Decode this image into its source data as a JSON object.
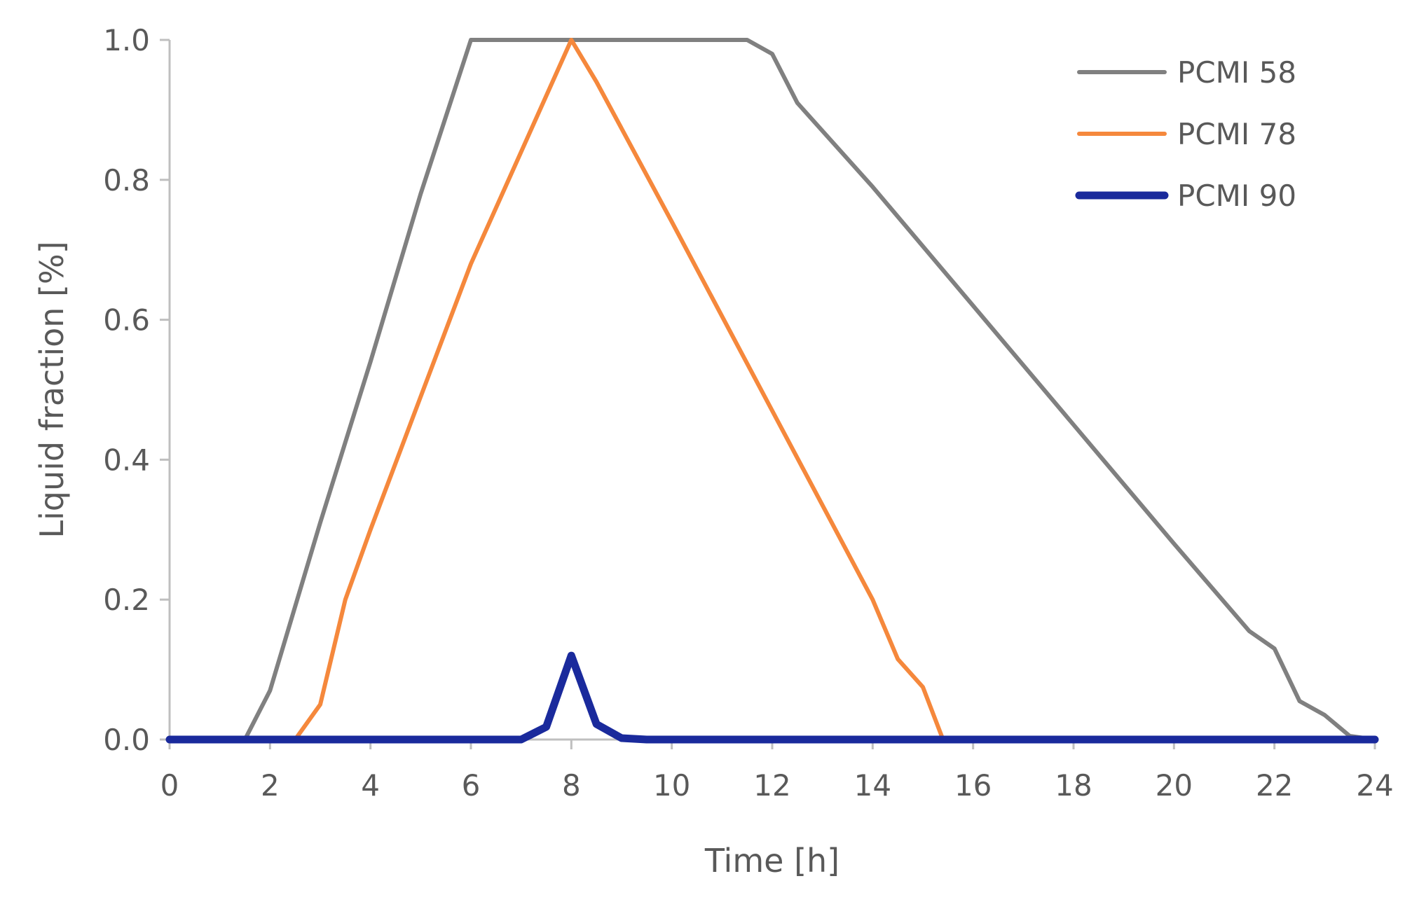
{
  "chart_data": {
    "type": "line",
    "title": "",
    "xlabel": "Time [h]",
    "ylabel": "Liquid fraction [%]",
    "xlim": [
      0,
      24
    ],
    "ylim": [
      0,
      1.0
    ],
    "xticks": [
      0,
      2,
      4,
      6,
      8,
      10,
      12,
      14,
      16,
      18,
      20,
      22,
      24
    ],
    "xtick_labels": [
      "0",
      "2",
      "4",
      "6",
      "8",
      "10",
      "12",
      "14",
      "16",
      "18",
      "20",
      "22",
      "24"
    ],
    "yticks": [
      0,
      0.2,
      0.4,
      0.6,
      0.8,
      1.0
    ],
    "ytick_labels": [
      "0.0",
      "0.2",
      "0.4",
      "0.6",
      "0.8",
      "1.0"
    ],
    "grid": false,
    "legend_position": "top-right",
    "series": [
      {
        "name": "PCMI 58",
        "color": "#808080",
        "line_weight": "normal",
        "x": [
          0,
          1.5,
          2,
          3,
          4,
          5,
          6,
          7,
          8,
          9,
          10,
          11,
          11.5,
          12,
          12.5,
          14,
          16,
          18,
          20,
          21.5,
          22,
          22.5,
          23,
          23.5,
          24
        ],
        "y": [
          0,
          0,
          0.07,
          0.31,
          0.54,
          0.78,
          1.0,
          1.0,
          1.0,
          1.0,
          1.0,
          1.0,
          1.0,
          0.98,
          0.91,
          0.79,
          0.62,
          0.45,
          0.28,
          0.155,
          0.13,
          0.055,
          0.035,
          0.005,
          0
        ]
      },
      {
        "name": "PCMI 78",
        "color": "#f5883c",
        "line_weight": "normal",
        "x": [
          0,
          2.5,
          3,
          3.5,
          4,
          5,
          6,
          7,
          8,
          8.5,
          10,
          12,
          14,
          14.5,
          15,
          15.4,
          16,
          24
        ],
        "y": [
          0,
          0,
          0.05,
          0.2,
          0.3,
          0.49,
          0.68,
          0.84,
          1.0,
          0.94,
          0.74,
          0.47,
          0.2,
          0.115,
          0.075,
          0,
          0,
          0
        ]
      },
      {
        "name": "PCMI 90",
        "color": "#1a2a9c",
        "line_weight": "thick",
        "x": [
          0,
          7,
          7.5,
          8,
          8.5,
          9,
          9.5,
          24
        ],
        "y": [
          0,
          0,
          0.018,
          0.12,
          0.022,
          0.002,
          0,
          0
        ]
      }
    ]
  }
}
